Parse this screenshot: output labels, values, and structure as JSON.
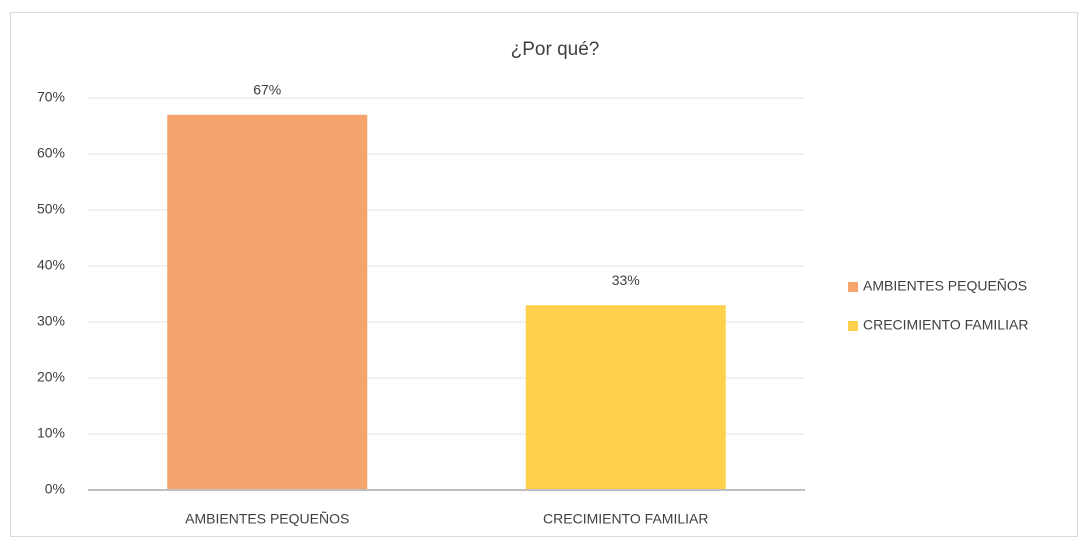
{
  "chart_data": {
    "type": "bar",
    "title": "¿Por qué?",
    "categories": [
      "AMBIENTES PEQUEÑOS",
      "CRECIMIENTO FAMILIAR"
    ],
    "values": [
      67,
      33
    ],
    "value_labels": [
      "67%",
      "33%"
    ],
    "colors": [
      "#f4a46c",
      "#fdd14b"
    ],
    "ylim": [
      0,
      70
    ],
    "yticks": [
      {
        "value": 0,
        "label": "0%"
      },
      {
        "value": 10,
        "label": "10%"
      },
      {
        "value": 20,
        "label": "20%"
      },
      {
        "value": 30,
        "label": "30%"
      },
      {
        "value": 40,
        "label": "40%"
      },
      {
        "value": 50,
        "label": "50%"
      },
      {
        "value": 60,
        "label": "60%"
      },
      {
        "value": 70,
        "label": "70%"
      }
    ],
    "grid": true,
    "legend": "right"
  }
}
